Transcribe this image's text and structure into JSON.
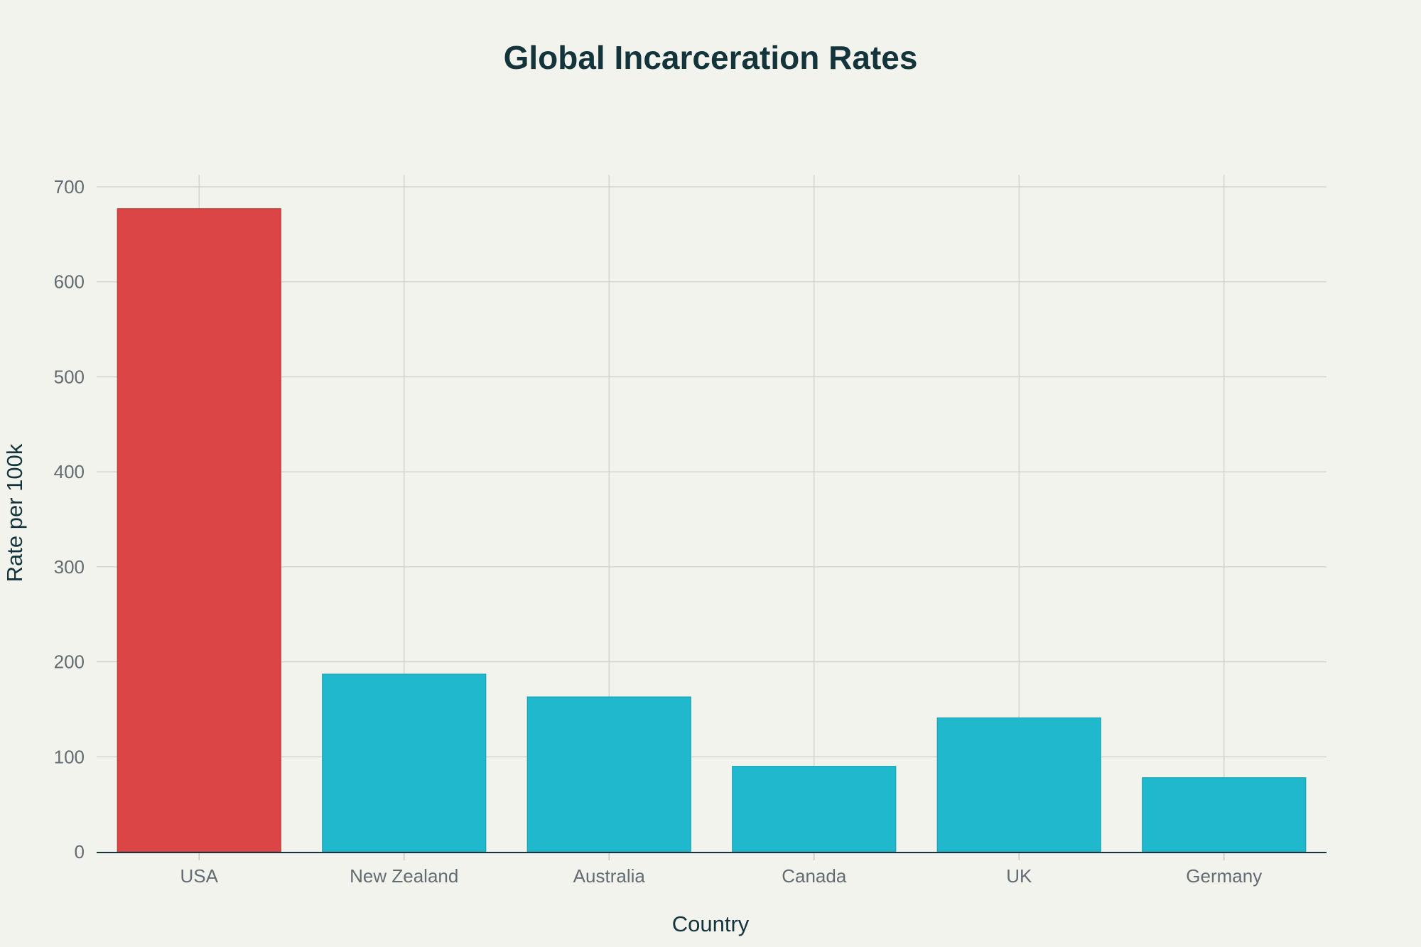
{
  "chart_data": {
    "type": "bar",
    "title": "Global Incarceration Rates",
    "xlabel": "Country",
    "ylabel": "Rate per 100k",
    "categories": [
      "USA",
      "New Zealand",
      "Australia",
      "Canada",
      "UK",
      "Germany"
    ],
    "values": [
      677,
      187,
      163,
      90,
      141,
      78
    ],
    "bar_colors": [
      "#db4545",
      "#1fb8cd",
      "#1fb8cd",
      "#1fb8cd",
      "#1fb8cd",
      "#1fb8cd"
    ],
    "bar_border_colors": [
      "#c13b3b",
      "#1aa3b6",
      "#1aa3b6",
      "#1aa3b6",
      "#1aa3b6",
      "#1aa3b6"
    ],
    "ylim": [
      0,
      712
    ],
    "yticks": [
      0,
      100,
      200,
      300,
      400,
      500,
      600,
      700
    ],
    "grid": true,
    "background": "#f3f3ee"
  }
}
